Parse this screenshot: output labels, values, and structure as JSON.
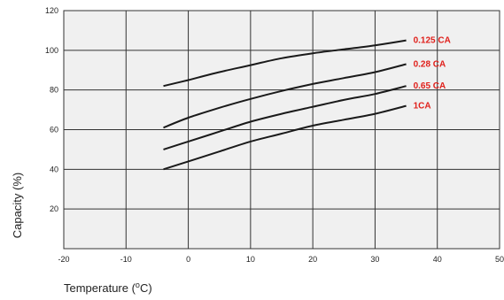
{
  "chart_data": {
    "type": "line",
    "xlabel": "Temperature (",
    "xlabel_sup": "o",
    "xlabel_unit": "C)",
    "ylabel": "Capacity (%)",
    "xlim": [
      -20,
      50
    ],
    "ylim": [
      0,
      120
    ],
    "x_ticks": [
      "-20",
      "-10",
      "0",
      "10",
      "20",
      "30",
      "40",
      "50"
    ],
    "y_ticks": [
      "20",
      "40",
      "60",
      "80",
      "100",
      "120"
    ],
    "grid": true,
    "series": [
      {
        "name": "0.125 CA",
        "x": [
          -4,
          0,
          5,
          10,
          15,
          20,
          25,
          30,
          35
        ],
        "y": [
          82,
          85,
          89,
          92.5,
          96,
          98.5,
          100.5,
          102.5,
          105
        ]
      },
      {
        "name": "0.28 CA",
        "x": [
          -4,
          0,
          5,
          10,
          15,
          20,
          25,
          30,
          35
        ],
        "y": [
          61,
          66,
          71,
          75.5,
          79.5,
          83,
          86,
          89,
          93
        ]
      },
      {
        "name": "0.65 CA",
        "x": [
          -4,
          0,
          5,
          10,
          15,
          20,
          25,
          30,
          35
        ],
        "y": [
          50,
          54,
          59,
          64,
          68,
          71.5,
          75,
          78,
          82
        ]
      },
      {
        "name": "1CA",
        "x": [
          -4,
          0,
          5,
          10,
          15,
          20,
          25,
          30,
          35
        ],
        "y": [
          40,
          44,
          49,
          54,
          58,
          62,
          65,
          68,
          72
        ]
      }
    ],
    "colors": {
      "line": "#1a1a1a",
      "label": "#e0201b",
      "plot_bg": "#f0f0f0",
      "grid": "#333333"
    }
  }
}
